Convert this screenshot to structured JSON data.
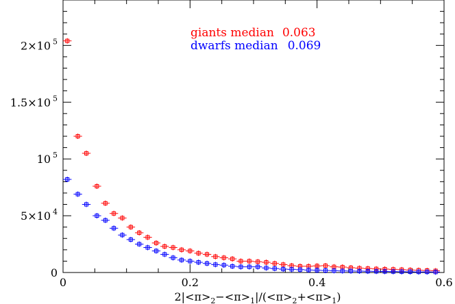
{
  "chart_data": {
    "type": "scatter",
    "xlabel_parts": {
      "lead": "2|<π>",
      "s2a": "2",
      "minus": "−<π>",
      "s1a": "1",
      "mid": "|/(<π>",
      "s2b": "2",
      "plus": "+<π>",
      "s1b": "1",
      "tail": ")"
    },
    "xlim": [
      0,
      0.6
    ],
    "ylim": [
      0,
      240000
    ],
    "x_ticks": [
      {
        "value": 0,
        "label": "0"
      },
      {
        "value": 0.2,
        "label": "0.2"
      },
      {
        "value": 0.4,
        "label": "0.4"
      },
      {
        "value": 0.6,
        "label": "0.6"
      }
    ],
    "y_ticks": [
      {
        "value": 0,
        "mant": "0",
        "exp": ""
      },
      {
        "value": 50000,
        "mant": "5×10",
        "exp": "4"
      },
      {
        "value": 100000,
        "mant": "10",
        "exp": "5"
      },
      {
        "value": 150000,
        "mant": "1.5×10",
        "exp": "5"
      },
      {
        "value": 200000,
        "mant": "2×10",
        "exp": "5"
      }
    ],
    "x_half_width": 0.0067,
    "series": [
      {
        "name": "giants",
        "color": "#ff0000",
        "legend_label": "giants median",
        "median": "0.063",
        "points": [
          [
            0.0067,
            204000
          ],
          [
            0.0233,
            120000
          ],
          [
            0.0367,
            105000
          ],
          [
            0.0533,
            76000
          ],
          [
            0.0667,
            61000
          ],
          [
            0.08,
            52000
          ],
          [
            0.0933,
            48000
          ],
          [
            0.1067,
            40000
          ],
          [
            0.12,
            35000
          ],
          [
            0.1333,
            31000
          ],
          [
            0.1467,
            26000
          ],
          [
            0.16,
            23000
          ],
          [
            0.1733,
            22000
          ],
          [
            0.1867,
            20000
          ],
          [
            0.2,
            19000
          ],
          [
            0.2133,
            17000
          ],
          [
            0.2267,
            16000
          ],
          [
            0.24,
            14000
          ],
          [
            0.2533,
            13000
          ],
          [
            0.2667,
            12000
          ],
          [
            0.28,
            10000
          ],
          [
            0.2933,
            10000
          ],
          [
            0.3067,
            9500
          ],
          [
            0.32,
            9000
          ],
          [
            0.3333,
            8000
          ],
          [
            0.3467,
            7000
          ],
          [
            0.36,
            6000
          ],
          [
            0.3733,
            5500
          ],
          [
            0.3867,
            5500
          ],
          [
            0.4,
            5800
          ],
          [
            0.4133,
            6000
          ],
          [
            0.4267,
            5000
          ],
          [
            0.44,
            4800
          ],
          [
            0.4533,
            4200
          ],
          [
            0.4667,
            3800
          ],
          [
            0.48,
            3500
          ],
          [
            0.4933,
            3200
          ],
          [
            0.5067,
            3000
          ],
          [
            0.52,
            2800
          ],
          [
            0.5333,
            2500
          ],
          [
            0.5467,
            2200
          ],
          [
            0.56,
            2000
          ],
          [
            0.5733,
            1800
          ],
          [
            0.5867,
            1500
          ]
        ]
      },
      {
        "name": "dwarfs",
        "color": "#0000ff",
        "legend_label": "dwarfs median",
        "median": "0.069",
        "points": [
          [
            0.0067,
            82000
          ],
          [
            0.0233,
            69000
          ],
          [
            0.0367,
            60000
          ],
          [
            0.0533,
            50000
          ],
          [
            0.0667,
            46000
          ],
          [
            0.08,
            39000
          ],
          [
            0.0933,
            33000
          ],
          [
            0.1067,
            29000
          ],
          [
            0.12,
            25000
          ],
          [
            0.1333,
            22000
          ],
          [
            0.1467,
            19000
          ],
          [
            0.16,
            16000
          ],
          [
            0.1733,
            13000
          ],
          [
            0.1867,
            11000
          ],
          [
            0.2,
            10000
          ],
          [
            0.2133,
            9000
          ],
          [
            0.2267,
            8000
          ],
          [
            0.24,
            7000
          ],
          [
            0.2533,
            6500
          ],
          [
            0.2667,
            5500
          ],
          [
            0.28,
            5000
          ],
          [
            0.2933,
            5000
          ],
          [
            0.3067,
            5000
          ],
          [
            0.32,
            4000
          ],
          [
            0.3333,
            3500
          ],
          [
            0.3467,
            3000
          ],
          [
            0.36,
            2800
          ],
          [
            0.3733,
            2500
          ],
          [
            0.3867,
            2200
          ],
          [
            0.4,
            2000
          ],
          [
            0.4133,
            1800
          ],
          [
            0.4267,
            1600
          ],
          [
            0.44,
            1400
          ],
          [
            0.4533,
            1300
          ],
          [
            0.4667,
            1200
          ],
          [
            0.48,
            1100
          ],
          [
            0.4933,
            1000
          ],
          [
            0.5067,
            900
          ],
          [
            0.52,
            800
          ],
          [
            0.5333,
            700
          ],
          [
            0.5467,
            600
          ],
          [
            0.56,
            500
          ],
          [
            0.5733,
            500
          ],
          [
            0.5867,
            400
          ]
        ]
      }
    ],
    "grid": false,
    "legend_position": "top-center"
  }
}
